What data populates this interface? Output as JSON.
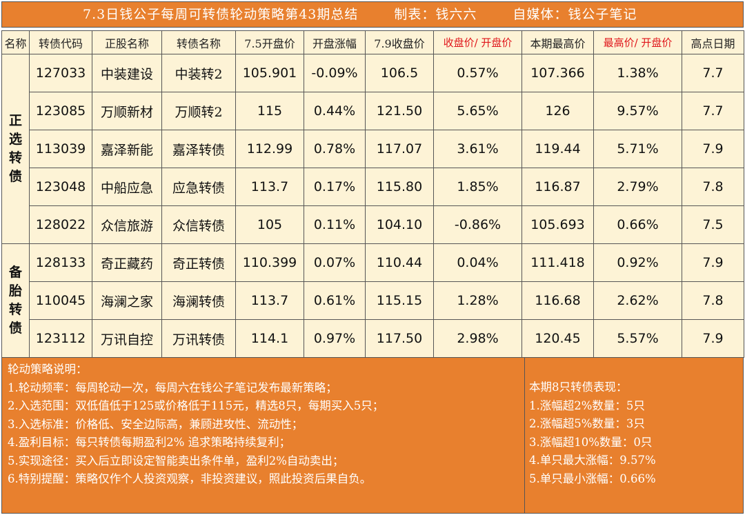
{
  "title": {
    "main": "7.3日钱公子每周可转债轮动策略第43期总结",
    "maker": "制表：钱六六",
    "media": "自媒体：钱公子笔记"
  },
  "colors": {
    "orange": "#e8802e",
    "cream": "#fdf3d6",
    "red": "#e0161b",
    "green": "#3a8a2b",
    "purple": "#6a3da8"
  },
  "headers": [
    "名称",
    "转债代码",
    "正股名称",
    "转债名称",
    "7.5开盘价",
    "开盘涨幅",
    "7.9收盘价",
    "收盘价/ 开盘价",
    "本期最高价",
    "最高价/ 开盘价",
    "高点日期"
  ],
  "groups": {
    "primary": "正选转债",
    "backup": "备胎转债"
  },
  "rows": [
    {
      "code": "127033",
      "stock": "中装建设",
      "bond": "中装转2",
      "open": "105.901",
      "open_chg": "-0.09%",
      "close": "106.5",
      "close_ratio": "0.57%",
      "high": "107.366",
      "high_ratio": "1.38%",
      "high_date": "7.7"
    },
    {
      "code": "123085",
      "stock": "万顺新材",
      "bond": "万顺转2",
      "open": "115",
      "open_chg": "0.44%",
      "close": "121.50",
      "close_ratio": "5.65%",
      "high": "126",
      "high_ratio": "9.57%",
      "high_date": "7.7"
    },
    {
      "code": "113039",
      "stock": "嘉泽新能",
      "bond": "嘉泽转债",
      "open": "112.99",
      "open_chg": "0.78%",
      "close": "117.07",
      "close_ratio": "3.61%",
      "high": "119.44",
      "high_ratio": "5.71%",
      "high_date": "7.9"
    },
    {
      "code": "123048",
      "stock": "中船应急",
      "bond": "应急转债",
      "open": "113.7",
      "open_chg": "0.17%",
      "close": "115.80",
      "close_ratio": "1.85%",
      "high": "116.87",
      "high_ratio": "2.79%",
      "high_date": "7.8"
    },
    {
      "code": "128022",
      "stock": "众信旅游",
      "bond": "众信转债",
      "open": "105",
      "open_chg": "0.11%",
      "close": "104.10",
      "close_ratio": "-0.86%",
      "high": "105.693",
      "high_ratio": "0.66%",
      "high_date": "7.5"
    },
    {
      "code": "128133",
      "stock": "奇正藏药",
      "bond": "奇正转债",
      "open": "110.399",
      "open_chg": "0.07%",
      "close": "110.44",
      "close_ratio": "0.04%",
      "high": "111.418",
      "high_ratio": "0.92%",
      "high_date": "7.9"
    },
    {
      "code": "110045",
      "stock": "海澜之家",
      "bond": "海澜转债",
      "open": "113.7",
      "open_chg": "0.61%",
      "close": "115.15",
      "close_ratio": "1.28%",
      "high": "116.68",
      "high_ratio": "2.62%",
      "high_date": "7.8"
    },
    {
      "code": "123112",
      "stock": "万讯自控",
      "bond": "万讯转债",
      "open": "114.1",
      "open_chg": "0.97%",
      "close": "117.50",
      "close_ratio": "2.98%",
      "high": "120.45",
      "high_ratio": "5.57%",
      "high_date": "7.9"
    }
  ],
  "strategy": {
    "heading": "轮动策略说明：",
    "items": [
      "1.轮动频率：每周轮动一次，每周六在钱公子笔记发布最新策略；",
      "2.入选范围：双低值低于125或价格低于115元，精选8只，每期买入5只；",
      "3.入选标准：价格低、安全边际高，兼顾进攻性、流动性；",
      "4.盈利目标：每只转债每期盈利2% 追求策略持续复利；",
      "5.实现途径：买入后立即设定智能卖出条件单，盈利2%自动卖出；",
      "6.特别提醒：策略仅作个人投资观察，非投资建议，照此投资后果自负。"
    ]
  },
  "performance": {
    "heading": "本期8只转债表现：",
    "items": [
      "1.涨幅超2%数量：5只",
      "2.涨幅超5%数量：3只",
      "3.涨幅超10%数量：0只",
      "4.单只最大涨幅：9.57%",
      "5.单只最小涨幅：0.66%"
    ]
  }
}
